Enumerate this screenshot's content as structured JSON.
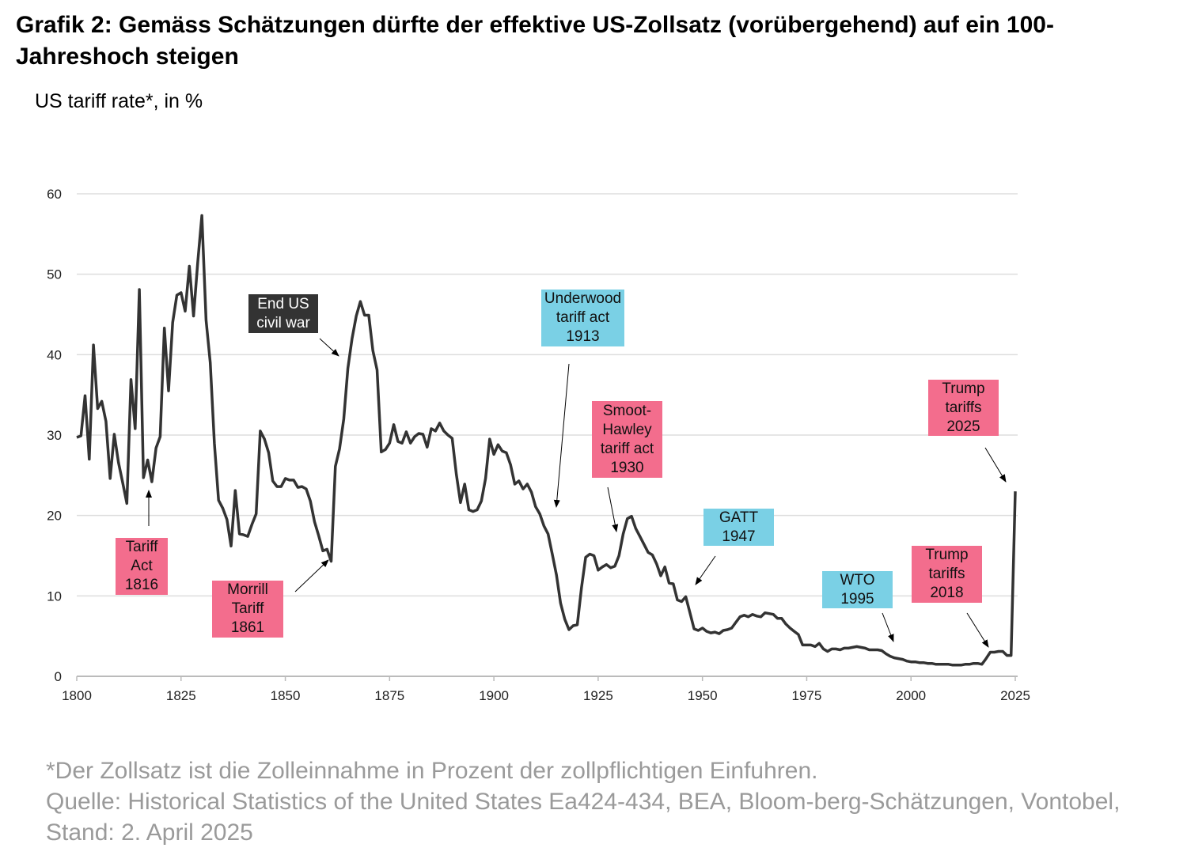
{
  "header": {
    "title": "Grafik 2: Gemäss Schätzungen dürfte der effektive US-Zollsatz (vorübergehend) auf ein 100-Jahreshoch steigen"
  },
  "chart_data": {
    "type": "line",
    "title": "",
    "ylabel": "US tariff rate*, in %",
    "xlabel": "",
    "xlim": [
      1800,
      2025
    ],
    "ylim": [
      0,
      60
    ],
    "x_ticks": [
      "1800",
      "1825",
      "1850",
      "1875",
      "1900",
      "1925",
      "1950",
      "1975",
      "2000",
      "2025"
    ],
    "y_ticks": [
      "0",
      "10",
      "20",
      "30",
      "40",
      "50",
      "60"
    ],
    "grid": "horizontal",
    "line_color": "#333333",
    "x_start": 1800,
    "values": [
      29.7,
      29.9,
      34.9,
      27,
      41.2,
      33.3,
      34.2,
      31.7,
      24.6,
      30.1,
      26.6,
      24.1,
      21.5,
      36.9,
      30.8,
      48.1,
      24.7,
      26.9,
      24.2,
      28.4,
      29.8,
      43.3,
      35.5,
      44,
      47.4,
      47.7,
      45.4,
      51,
      44.8,
      51.5,
      57.3,
      44.3,
      39,
      29,
      21.9,
      20.9,
      19.5,
      16.2,
      23.1,
      17.7,
      17.6,
      17.4,
      18.9,
      20.2,
      30.5,
      29.5,
      27.8,
      24.3,
      23.6,
      23.6,
      24.6,
      24.4,
      24.4,
      23.5,
      23.6,
      23.3,
      21.8,
      19.2,
      17.5,
      15.6,
      15.8,
      14.3,
      26.1,
      28.3,
      32,
      38.3,
      42,
      44.8,
      46.6,
      44.9,
      44.9,
      40.5,
      38.1,
      27.9,
      28.2,
      29,
      31.3,
      29.2,
      29,
      30.4,
      29,
      29.8,
      30.2,
      30.1,
      28.5,
      30.8,
      30.5,
      31.5,
      30.5,
      30,
      29.6,
      25.1,
      21.6,
      23.9,
      20.7,
      20.5,
      20.7,
      21.8,
      24.6,
      29.5,
      27.6,
      28.8,
      28,
      27.8,
      26.3,
      23.9,
      24.3,
      23.3,
      23.9,
      22.9,
      21.1,
      20.2,
      18.7,
      17.7,
      15.2,
      12.6,
      9.1,
      7.1,
      5.8,
      6.3,
      6.4,
      11,
      14.8,
      15.2,
      15,
      13.2,
      13.6,
      13.9,
      13.5,
      13.7,
      15,
      17.7,
      19.6,
      19.9,
      18.4,
      17.4,
      16.4,
      15.4,
      15.1,
      14,
      12.5,
      13.6,
      11.6,
      11.5,
      9.5,
      9.3,
      9.9,
      7.9,
      5.9,
      5.7,
      6,
      5.6,
      5.4,
      5.5,
      5.3,
      5.7,
      5.8,
      6,
      6.7,
      7.4,
      7.6,
      7.4,
      7.7,
      7.5,
      7.4,
      7.9,
      7.8,
      7.7,
      7.2,
      7.2,
      6.5,
      6,
      5.6,
      5.2,
      3.9,
      3.9,
      3.9,
      3.7,
      4.1,
      3.4,
      3.1,
      3.4,
      3.4,
      3.3,
      3.5,
      3.5,
      3.6,
      3.7,
      3.6,
      3.5,
      3.3,
      3.3,
      3.3,
      3.2,
      2.8,
      2.5,
      2.3,
      2.2,
      2.1,
      1.9,
      1.8,
      1.8,
      1.7,
      1.7,
      1.6,
      1.6,
      1.5,
      1.5,
      1.5,
      1.5,
      1.4,
      1.4,
      1.4,
      1.5,
      1.5,
      1.6,
      1.6,
      1.5,
      2.2,
      3,
      3,
      3.1,
      3.1,
      2.6,
      2.6,
      23
    ],
    "annotations": [
      {
        "lines": [
          "Tariff",
          "Act",
          "1816"
        ],
        "year": 1816,
        "color": "#f36d8d"
      },
      {
        "lines": [
          "Morrill",
          "Tariff",
          "1861"
        ],
        "year": 1861,
        "color": "#f36d8d"
      },
      {
        "lines": [
          "End US",
          "civil war"
        ],
        "year": 1865,
        "color": "#333333"
      },
      {
        "lines": [
          "Underwood",
          "tariff act",
          "1913"
        ],
        "year": 1913,
        "color": "#7ad0e5"
      },
      {
        "lines": [
          "Smoot-",
          "Hawley",
          "tariff act",
          "1930"
        ],
        "year": 1930,
        "color": "#f36d8d"
      },
      {
        "lines": [
          "GATT",
          "1947"
        ],
        "year": 1947,
        "color": "#7ad0e5"
      },
      {
        "lines": [
          "WTO",
          "1995"
        ],
        "year": 1995,
        "color": "#7ad0e5"
      },
      {
        "lines": [
          "Trump",
          "tariffs",
          "2018"
        ],
        "year": 2018,
        "color": "#f36d8d"
      },
      {
        "lines": [
          "Trump",
          "tariffs",
          "2025"
        ],
        "year": 2025,
        "color": "#f36d8d"
      }
    ]
  },
  "footer": {
    "note": "*Der Zollsatz ist die Zolleinnahme in Prozent der zollpflichtigen Einfuhren.",
    "source": "Quelle: Historical Statistics of the United States Ea424-434, BEA, Bloom-berg-Schätzungen, Vontobel, Stand: 2. April 2025"
  }
}
